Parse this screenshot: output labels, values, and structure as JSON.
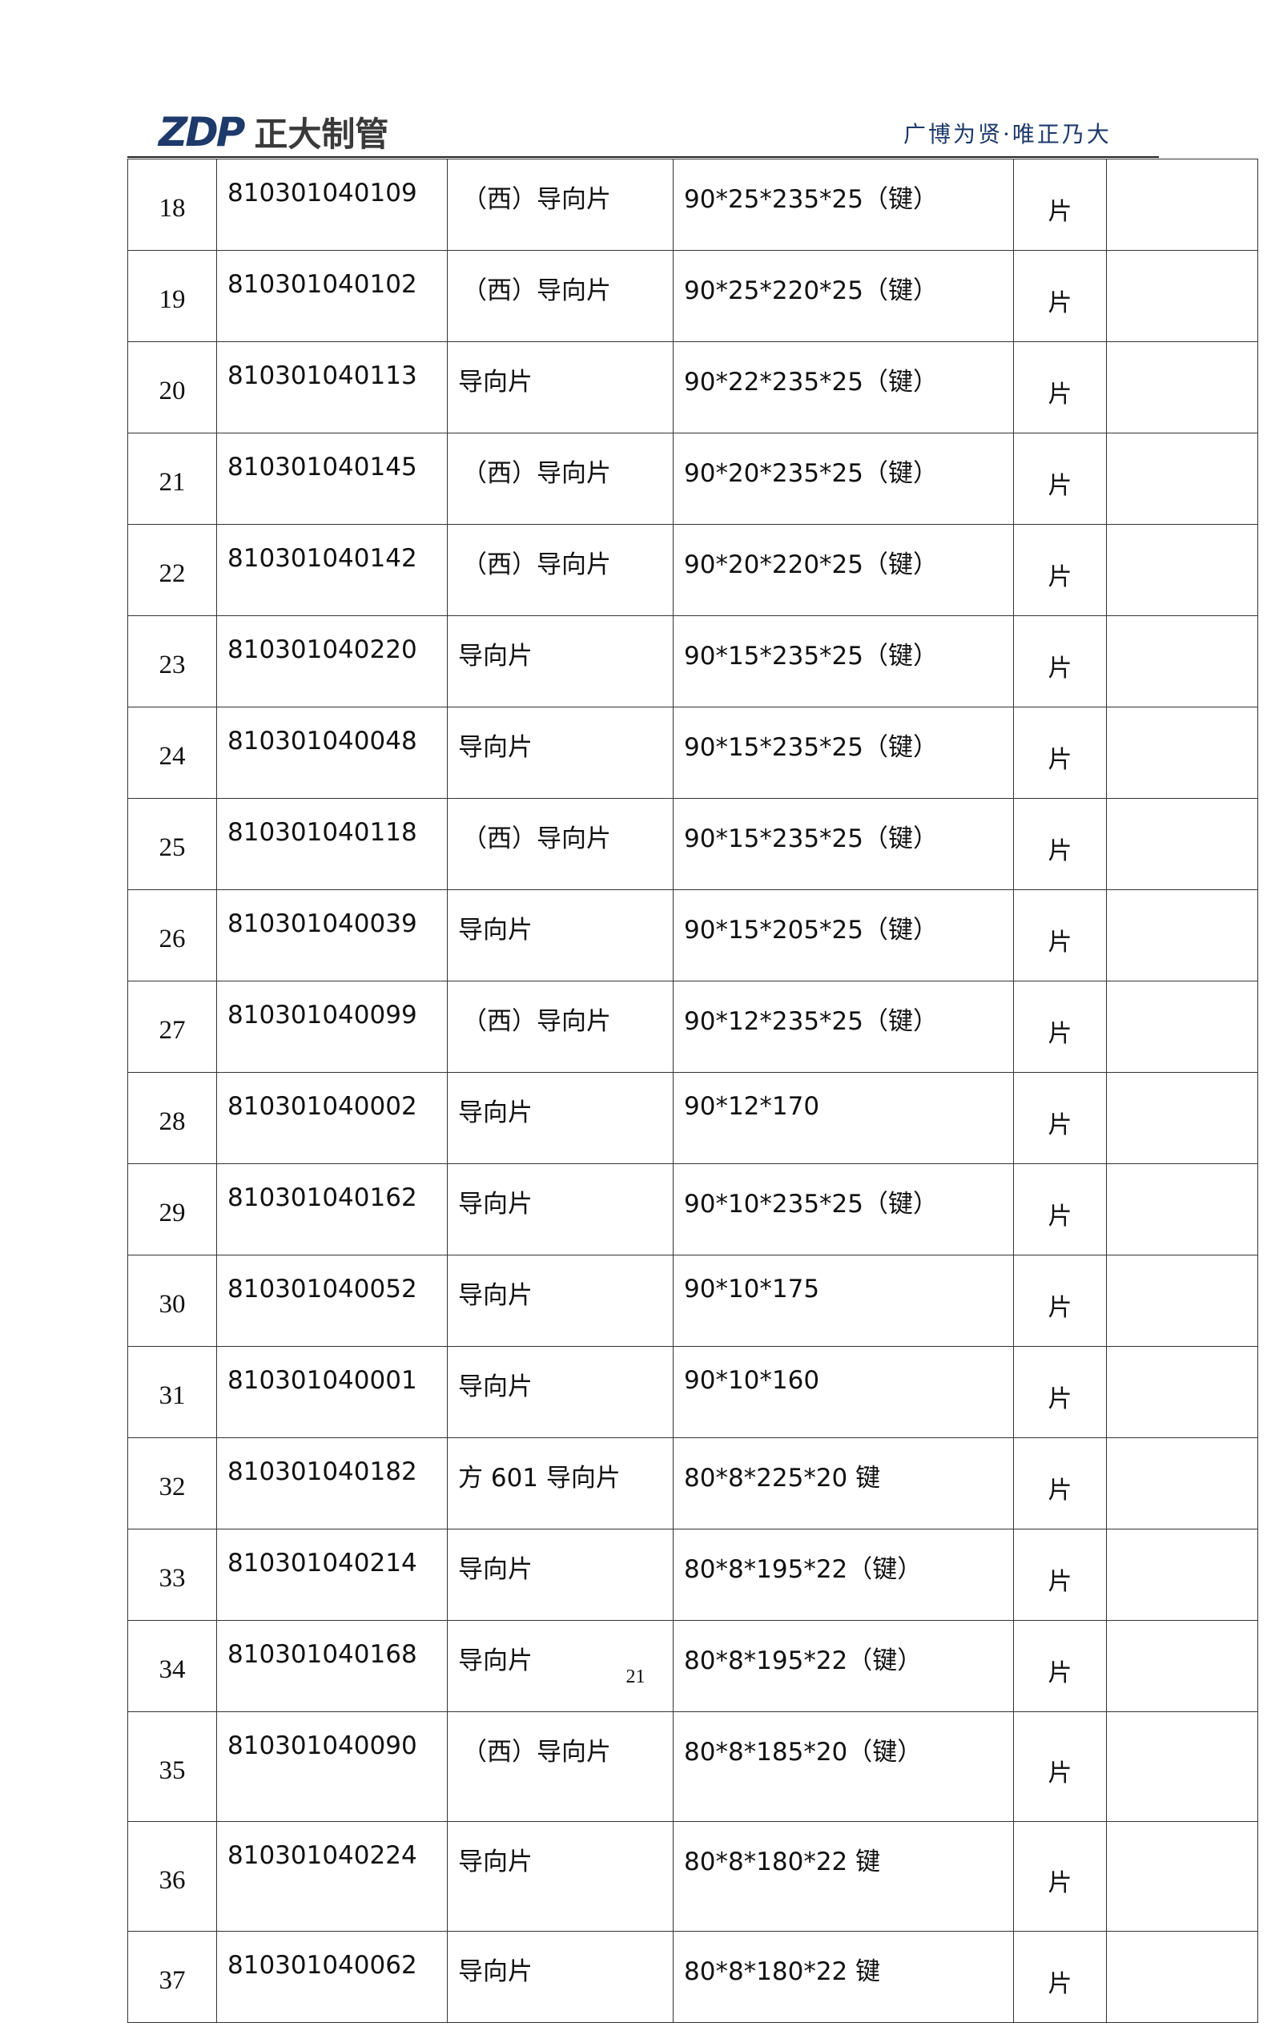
{
  "header": {
    "logo_mark": "ZDP",
    "logo_text": "正大制管",
    "slogan": "广博为贤·唯正乃大"
  },
  "rows": [
    {
      "no": "18",
      "code": "810301040109",
      "name": "（西）导向片",
      "spec": "90*25*235*25（键）",
      "unit": "片",
      "extra": ""
    },
    {
      "no": "19",
      "code": "810301040102",
      "name": "（西）导向片",
      "spec": "90*25*220*25（键）",
      "unit": "片",
      "extra": ""
    },
    {
      "no": "20",
      "code": "810301040113",
      "name": "导向片",
      "spec": "90*22*235*25（键）",
      "unit": "片",
      "extra": ""
    },
    {
      "no": "21",
      "code": "810301040145",
      "name": "（西）导向片",
      "spec": "90*20*235*25（键）",
      "unit": "片",
      "extra": ""
    },
    {
      "no": "22",
      "code": "810301040142",
      "name": "（西）导向片",
      "spec": "90*20*220*25（键）",
      "unit": "片",
      "extra": ""
    },
    {
      "no": "23",
      "code": "810301040220",
      "name": "导向片",
      "spec": "90*15*235*25（键）",
      "unit": "片",
      "extra": ""
    },
    {
      "no": "24",
      "code": "810301040048",
      "name": "导向片",
      "spec": "90*15*235*25（键）",
      "unit": "片",
      "extra": ""
    },
    {
      "no": "25",
      "code": "810301040118",
      "name": "（西）导向片",
      "spec": "90*15*235*25（键）",
      "unit": "片",
      "extra": ""
    },
    {
      "no": "26",
      "code": "810301040039",
      "name": "导向片",
      "spec": "90*15*205*25（键）",
      "unit": "片",
      "extra": ""
    },
    {
      "no": "27",
      "code": "810301040099",
      "name": "（西）导向片",
      "spec": "90*12*235*25（键）",
      "unit": "片",
      "extra": ""
    },
    {
      "no": "28",
      "code": "810301040002",
      "name": "导向片",
      "spec": "90*12*170",
      "unit": "片",
      "extra": ""
    },
    {
      "no": "29",
      "code": "810301040162",
      "name": "导向片",
      "spec": "90*10*235*25（键）",
      "unit": "片",
      "extra": ""
    },
    {
      "no": "30",
      "code": "810301040052",
      "name": "导向片",
      "spec": "90*10*175",
      "unit": "片",
      "extra": ""
    },
    {
      "no": "31",
      "code": "810301040001",
      "name": "导向片",
      "spec": "90*10*160",
      "unit": "片",
      "extra": ""
    },
    {
      "no": "32",
      "code": "810301040182",
      "name": "方 601 导向片",
      "spec": "80*8*225*20 键",
      "unit": "片",
      "extra": ""
    },
    {
      "no": "33",
      "code": "810301040214",
      "name": "导向片",
      "spec": "80*8*195*22（键）",
      "unit": "片",
      "extra": ""
    },
    {
      "no": "34",
      "code": "810301040168",
      "name": "导向片",
      "spec": "80*8*195*22（键）",
      "unit": "片",
      "extra": ""
    },
    {
      "no": "35",
      "code": "810301040090",
      "name": "（西）导向片",
      "spec": "80*8*185*20（键）",
      "unit": "片",
      "extra": ""
    },
    {
      "no": "36",
      "code": "810301040224",
      "name": "导向片",
      "spec": "80*8*180*22 键",
      "unit": "片",
      "extra": ""
    },
    {
      "no": "37",
      "code": "810301040062",
      "name": "导向片",
      "spec": "80*8*180*22 键",
      "unit": "片",
      "extra": ""
    }
  ],
  "footer": {
    "page_number": "21"
  }
}
